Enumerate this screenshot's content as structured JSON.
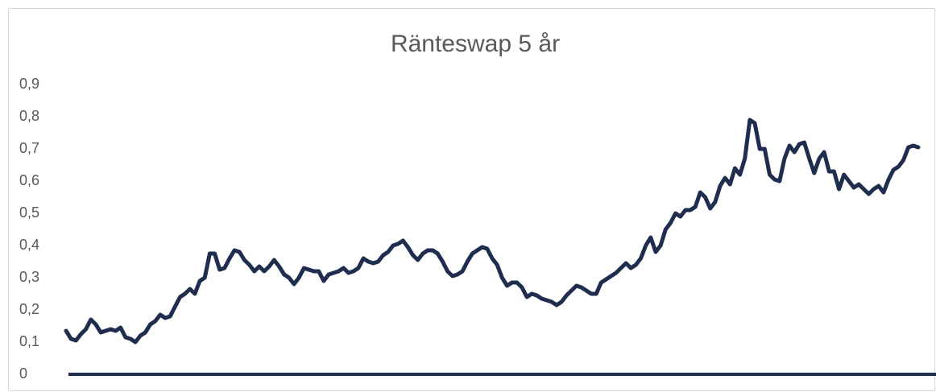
{
  "chart_data": {
    "type": "line",
    "title": "Ränteswap 5 år",
    "series": [
      {
        "name": null,
        "color": "#1f2d4e",
        "values": [
          0.135,
          0.11,
          0.105,
          0.125,
          0.14,
          0.17,
          0.155,
          0.13,
          0.135,
          0.14,
          0.135,
          0.145,
          0.115,
          0.11,
          0.1,
          0.12,
          0.13,
          0.155,
          0.165,
          0.185,
          0.175,
          0.18,
          0.21,
          0.24,
          0.25,
          0.265,
          0.25,
          0.29,
          0.3,
          0.375,
          0.375,
          0.325,
          0.33,
          0.36,
          0.385,
          0.38,
          0.355,
          0.34,
          0.32,
          0.335,
          0.32,
          0.335,
          0.355,
          0.335,
          0.31,
          0.3,
          0.28,
          0.3,
          0.33,
          0.325,
          0.32,
          0.32,
          0.29,
          0.31,
          0.315,
          0.32,
          0.33,
          0.315,
          0.32,
          0.33,
          0.36,
          0.35,
          0.345,
          0.35,
          0.37,
          0.38,
          0.4,
          0.405,
          0.415,
          0.395,
          0.37,
          0.355,
          0.375,
          0.385,
          0.385,
          0.375,
          0.35,
          0.32,
          0.305,
          0.31,
          0.32,
          0.35,
          0.375,
          0.385,
          0.395,
          0.39,
          0.36,
          0.34,
          0.3,
          0.275,
          0.285,
          0.285,
          0.27,
          0.24,
          0.25,
          0.245,
          0.235,
          0.23,
          0.225,
          0.215,
          0.225,
          0.245,
          0.26,
          0.275,
          0.27,
          0.26,
          0.25,
          0.25,
          0.285,
          0.295,
          0.305,
          0.315,
          0.33,
          0.345,
          0.33,
          0.34,
          0.36,
          0.4,
          0.425,
          0.38,
          0.4,
          0.45,
          0.47,
          0.5,
          0.49,
          0.51,
          0.51,
          0.52,
          0.565,
          0.55,
          0.515,
          0.535,
          0.585,
          0.61,
          0.59,
          0.64,
          0.62,
          0.67,
          0.79,
          0.78,
          0.7,
          0.7,
          0.62,
          0.605,
          0.6,
          0.67,
          0.71,
          0.69,
          0.715,
          0.72,
          0.67,
          0.625,
          0.67,
          0.69,
          0.63,
          0.63,
          0.575,
          0.62,
          0.6,
          0.58,
          0.59,
          0.575,
          0.56,
          0.575,
          0.585,
          0.565,
          0.605,
          0.635,
          0.645,
          0.665,
          0.705,
          0.71,
          0.705
        ]
      }
    ],
    "ylim": [
      0,
      0.9
    ],
    "yticks": [
      0,
      {
        "value": 0.1,
        "label": "0,1"
      },
      {
        "value": 0.2,
        "label": "0,2"
      },
      {
        "value": 0.3,
        "label": "0,3"
      },
      {
        "value": 0.4,
        "label": "0,4"
      },
      {
        "value": 0.5,
        "label": "0,5"
      },
      {
        "value": 0.6,
        "label": "0,6"
      },
      {
        "value": 0.7,
        "label": "0,7"
      },
      {
        "value": 0.8,
        "label": "0,8"
      },
      {
        "value": 0.9,
        "label": "0,9"
      }
    ],
    "grid": false
  }
}
